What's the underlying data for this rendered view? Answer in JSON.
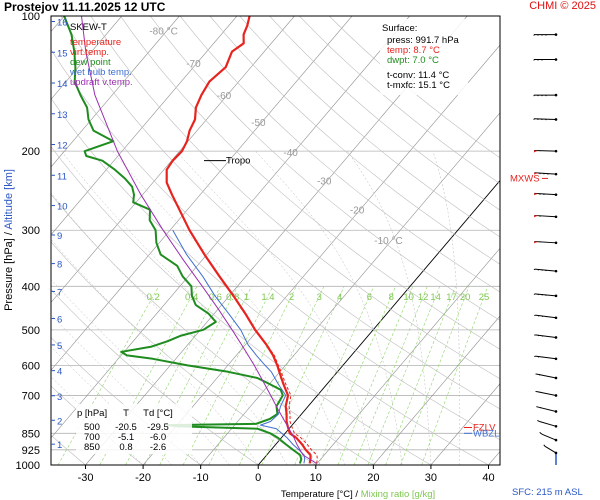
{
  "header": {
    "title": "Prostejov   11.11.2025 12 UTC",
    "credit": "CHMI © 2025"
  },
  "chart_data": {
    "type": "line",
    "subtitle": "SKEW-T",
    "xlabel": "Temperature [°C]",
    "xlabel_sep": "/",
    "xlabel2": "Mixing ratio [g/kg]",
    "ylabel": "Pressure [hPa]",
    "ylabel_sep": "/",
    "ylabel2": "Altitude [km]",
    "xlim": [
      -36,
      42
    ],
    "ylim": [
      1000,
      100
    ],
    "x_ticks": [
      -30,
      -20,
      -10,
      0,
      10,
      20,
      30,
      40
    ],
    "x_tick_labels": [
      "-30",
      "-20",
      "-10",
      "0",
      "10",
      "20",
      "30",
      "40"
    ],
    "p_ticks": [
      100,
      200,
      300,
      400,
      500,
      600,
      700,
      850,
      925,
      1000
    ],
    "p_tick_labels": [
      "100",
      "200",
      "300",
      "400",
      "500",
      "600",
      "700",
      "850",
      "925",
      "1000"
    ],
    "km_ticks": [
      1,
      2,
      3,
      4,
      5,
      6,
      7,
      8,
      9,
      10,
      11,
      12,
      13,
      14,
      15,
      16
    ],
    "km_tick_labels": [
      "1",
      "2",
      "3",
      "4",
      "5",
      "6",
      "7",
      "8",
      "9",
      "10",
      "11",
      "12",
      "13",
      "14",
      "15",
      "16"
    ],
    "isotherm_labels": [
      {
        "t": -80,
        "p": 110,
        "text": "-80 °C"
      },
      {
        "t": -70,
        "p": 130,
        "text": "-70"
      },
      {
        "t": -60,
        "p": 153,
        "text": "-60"
      },
      {
        "t": -50,
        "p": 176,
        "text": "-50"
      },
      {
        "t": -40,
        "p": 205,
        "text": "-40"
      },
      {
        "t": -30,
        "p": 237,
        "text": "-30"
      },
      {
        "t": -20,
        "p": 275,
        "text": "-20"
      },
      {
        "t": -10,
        "p": 322,
        "text": "-10 °C"
      }
    ],
    "mixing_ratio_labels": [
      "0.2",
      "0.4",
      "0.6",
      "0.8",
      "1",
      "1.4",
      "2",
      "3",
      "4",
      "6",
      "8",
      "10",
      "12",
      "14",
      "17",
      "20",
      "25"
    ],
    "mixing_ratio_values": [
      0.2,
      0.4,
      0.6,
      0.8,
      1,
      1.4,
      2,
      3,
      4,
      6,
      8,
      10,
      12,
      14,
      17,
      20,
      25
    ],
    "legend": [
      {
        "name": "temperature",
        "color": "#e8231e"
      },
      {
        "name": "virt.temp.",
        "color": "#e8231e"
      },
      {
        "name": "dew point",
        "color": "#1e8c1e"
      },
      {
        "name": "wet bulb temp.",
        "color": "#3f6fd1"
      },
      {
        "name": "updraft v.temp.",
        "color": "#9b30b0"
      }
    ],
    "surface": {
      "title": "Surface:",
      "press": "press: 991.7 hPa",
      "temp": "temp: 8.7 °C",
      "dwpt": "dwpt: 7.0 °C",
      "tconv": "t-conv: 11.4 °C",
      "tmxfc": "t-mxfc: 15.1 °C"
    },
    "table": {
      "headers": [
        "p [hPa]",
        "T",
        "Td [°C]"
      ],
      "rows": [
        [
          "500",
          "-20.5",
          "-29.5"
        ],
        [
          "700",
          "-5.1",
          "-6.0"
        ],
        [
          "850",
          "0.8",
          "-2.6"
        ]
      ]
    },
    "annotations": {
      "tropo": "Tropo",
      "tropo_p": 210,
      "mxws": "MXWS",
      "mxws_p": 230,
      "fzlv": "FZLV",
      "fzlv_p": 825,
      "wbzl": "WBZL",
      "wbzl_p": 850,
      "sfc": "SFC: 215 m ASL"
    },
    "series": [
      {
        "name": "temperature",
        "color": "#e8231e",
        "points": [
          [
            991.7,
            8.7
          ],
          [
            970,
            8.2
          ],
          [
            950,
            7.6
          ],
          [
            925,
            6.0
          ],
          [
            900,
            4.6
          ],
          [
            870,
            2.6
          ],
          [
            850,
            0.8
          ],
          [
            820,
            -0.6
          ],
          [
            800,
            -1.5
          ],
          [
            770,
            -2.6
          ],
          [
            740,
            -3.9
          ],
          [
            700,
            -5.1
          ],
          [
            660,
            -7.6
          ],
          [
            620,
            -10.1
          ],
          [
            600,
            -11.4
          ],
          [
            570,
            -13.6
          ],
          [
            540,
            -16.3
          ],
          [
            500,
            -20.5
          ],
          [
            460,
            -24.6
          ],
          [
            420,
            -29.3
          ],
          [
            380,
            -34.6
          ],
          [
            340,
            -40.4
          ],
          [
            300,
            -46.6
          ],
          [
            270,
            -51.4
          ],
          [
            250,
            -54.9
          ],
          [
            235,
            -57.6
          ],
          [
            220,
            -59.5
          ],
          [
            210,
            -59.8
          ],
          [
            200,
            -59.6
          ],
          [
            190,
            -60.2
          ],
          [
            180,
            -61.3
          ],
          [
            170,
            -62.0
          ],
          [
            160,
            -63.6
          ],
          [
            150,
            -64.5
          ],
          [
            140,
            -65.1
          ],
          [
            130,
            -64.4
          ],
          [
            120,
            -65.6
          ],
          [
            115,
            -64.8
          ],
          [
            110,
            -66.1
          ],
          [
            105,
            -66.8
          ],
          [
            100,
            -67.8
          ]
        ]
      },
      {
        "name": "virt.temp.",
        "color": "#e8231e",
        "points": [
          [
            991.7,
            9.9
          ],
          [
            970,
            9.4
          ],
          [
            950,
            8.7
          ],
          [
            925,
            7.0
          ],
          [
            900,
            5.5
          ],
          [
            870,
            3.4
          ],
          [
            850,
            1.6
          ],
          [
            820,
            0.1
          ],
          [
            800,
            -0.9
          ],
          [
            770,
            -2.0
          ],
          [
            740,
            -3.3
          ],
          [
            700,
            -4.6
          ],
          [
            660,
            -7.2
          ],
          [
            620,
            -9.8
          ],
          [
            600,
            -11.2
          ],
          [
            570,
            -13.4
          ],
          [
            540,
            -16.2
          ],
          [
            500,
            -20.4
          ],
          [
            460,
            -24.5
          ],
          [
            420,
            -29.2
          ],
          [
            380,
            -34.6
          ],
          [
            340,
            -40.4
          ],
          [
            300,
            -46.6
          ]
        ]
      },
      {
        "name": "dew point",
        "color": "#1e8c1e",
        "points": [
          [
            991.7,
            7.0
          ],
          [
            970,
            6.6
          ],
          [
            950,
            5.8
          ],
          [
            925,
            3.8
          ],
          [
            900,
            1.8
          ],
          [
            870,
            -0.6
          ],
          [
            850,
            -2.6
          ],
          [
            830,
            -5.5
          ],
          [
            820,
            -20.0
          ],
          [
            815,
            -21.5
          ],
          [
            810,
            -6.5
          ],
          [
            790,
            -4.8
          ],
          [
            770,
            -4.2
          ],
          [
            740,
            -5.5
          ],
          [
            700,
            -6.0
          ],
          [
            680,
            -7.2
          ],
          [
            660,
            -10.0
          ],
          [
            640,
            -13.0
          ],
          [
            620,
            -19.0
          ],
          [
            600,
            -27.0
          ],
          [
            580,
            -34.0
          ],
          [
            570,
            -39.0
          ],
          [
            560,
            -40.5
          ],
          [
            545,
            -36.0
          ],
          [
            530,
            -34.0
          ],
          [
            515,
            -32.5
          ],
          [
            500,
            -29.5
          ],
          [
            480,
            -28.5
          ],
          [
            460,
            -31.0
          ],
          [
            440,
            -34.5
          ],
          [
            420,
            -36.5
          ],
          [
            400,
            -38.0
          ],
          [
            380,
            -41.0
          ],
          [
            360,
            -43.5
          ],
          [
            340,
            -48.0
          ],
          [
            320,
            -50.5
          ],
          [
            300,
            -52.5
          ],
          [
            285,
            -55.0
          ],
          [
            270,
            -56.5
          ],
          [
            260,
            -60.5
          ],
          [
            250,
            -61.5
          ],
          [
            240,
            -63.0
          ],
          [
            230,
            -65.5
          ],
          [
            220,
            -68.5
          ],
          [
            210,
            -72.0
          ],
          [
            205,
            -75.5
          ],
          [
            200,
            -76.5
          ],
          [
            190,
            -73.0
          ],
          [
            180,
            -78.0
          ],
          [
            170,
            -80.5
          ],
          [
            160,
            -82.5
          ],
          [
            150,
            -85.5
          ],
          [
            140,
            -88.5
          ],
          [
            130,
            -90.5
          ],
          [
            120,
            -93.0
          ],
          [
            110,
            -96.0
          ],
          [
            100,
            -100.0
          ]
        ]
      },
      {
        "name": "wet bulb temp.",
        "color": "#3f6fd1",
        "points": [
          [
            991.7,
            7.7
          ],
          [
            970,
            7.2
          ],
          [
            950,
            6.5
          ],
          [
            925,
            4.8
          ],
          [
            900,
            3.0
          ],
          [
            870,
            1.0
          ],
          [
            850,
            -0.6
          ],
          [
            830,
            -2.2
          ],
          [
            815,
            -5.5
          ],
          [
            800,
            -4.3
          ],
          [
            770,
            -4.0
          ],
          [
            740,
            -4.8
          ],
          [
            700,
            -5.5
          ],
          [
            660,
            -8.5
          ],
          [
            620,
            -11.5
          ],
          [
            600,
            -13.5
          ],
          [
            570,
            -16.5
          ],
          [
            540,
            -19.5
          ],
          [
            500,
            -23.0
          ],
          [
            460,
            -27.5
          ],
          [
            420,
            -32.5
          ],
          [
            380,
            -37.5
          ],
          [
            340,
            -43.5
          ],
          [
            300,
            -49.5
          ]
        ]
      },
      {
        "name": "updraft v.temp.",
        "color": "#9b30b0",
        "points": [
          [
            991.7,
            9.9
          ],
          [
            950,
            6.3
          ],
          [
            925,
            5.0
          ],
          [
            900,
            3.7
          ],
          [
            870,
            2.2
          ],
          [
            850,
            1.1
          ],
          [
            800,
            -1.8
          ],
          [
            750,
            -4.9
          ],
          [
            700,
            -8.1
          ],
          [
            650,
            -11.6
          ],
          [
            600,
            -15.4
          ],
          [
            550,
            -19.7
          ],
          [
            500,
            -24.5
          ],
          [
            450,
            -29.9
          ],
          [
            400,
            -36.1
          ],
          [
            350,
            -43.2
          ],
          [
            300,
            -51.2
          ],
          [
            250,
            -60.3
          ],
          [
            200,
            -70.8
          ],
          [
            150,
            -83.0
          ],
          [
            120,
            -91.0
          ],
          [
            100,
            -97.0
          ]
        ]
      }
    ],
    "wind_barbs": [
      {
        "p": 110,
        "dir": 270,
        "spd": 40
      },
      {
        "p": 125,
        "dir": 270,
        "spd": 35
      },
      {
        "p": 150,
        "dir": 270,
        "spd": 40
      },
      {
        "p": 170,
        "dir": 275,
        "spd": 45
      },
      {
        "p": 200,
        "dir": 275,
        "spd": 55
      },
      {
        "p": 225,
        "dir": 280,
        "spd": 80
      },
      {
        "p": 250,
        "dir": 280,
        "spd": 70
      },
      {
        "p": 280,
        "dir": 280,
        "spd": 60
      },
      {
        "p": 320,
        "dir": 280,
        "spd": 55
      },
      {
        "p": 370,
        "dir": 285,
        "spd": 45
      },
      {
        "p": 420,
        "dir": 285,
        "spd": 40
      },
      {
        "p": 470,
        "dir": 290,
        "spd": 35
      },
      {
        "p": 520,
        "dir": 290,
        "spd": 30
      },
      {
        "p": 580,
        "dir": 290,
        "spd": 25
      },
      {
        "p": 640,
        "dir": 300,
        "spd": 20
      },
      {
        "p": 700,
        "dir": 300,
        "spd": 15
      },
      {
        "p": 760,
        "dir": 305,
        "spd": 15
      },
      {
        "p": 820,
        "dir": 310,
        "spd": 10
      },
      {
        "p": 880,
        "dir": 320,
        "spd": 10
      },
      {
        "p": 940,
        "dir": 330,
        "spd": 5
      }
    ]
  }
}
